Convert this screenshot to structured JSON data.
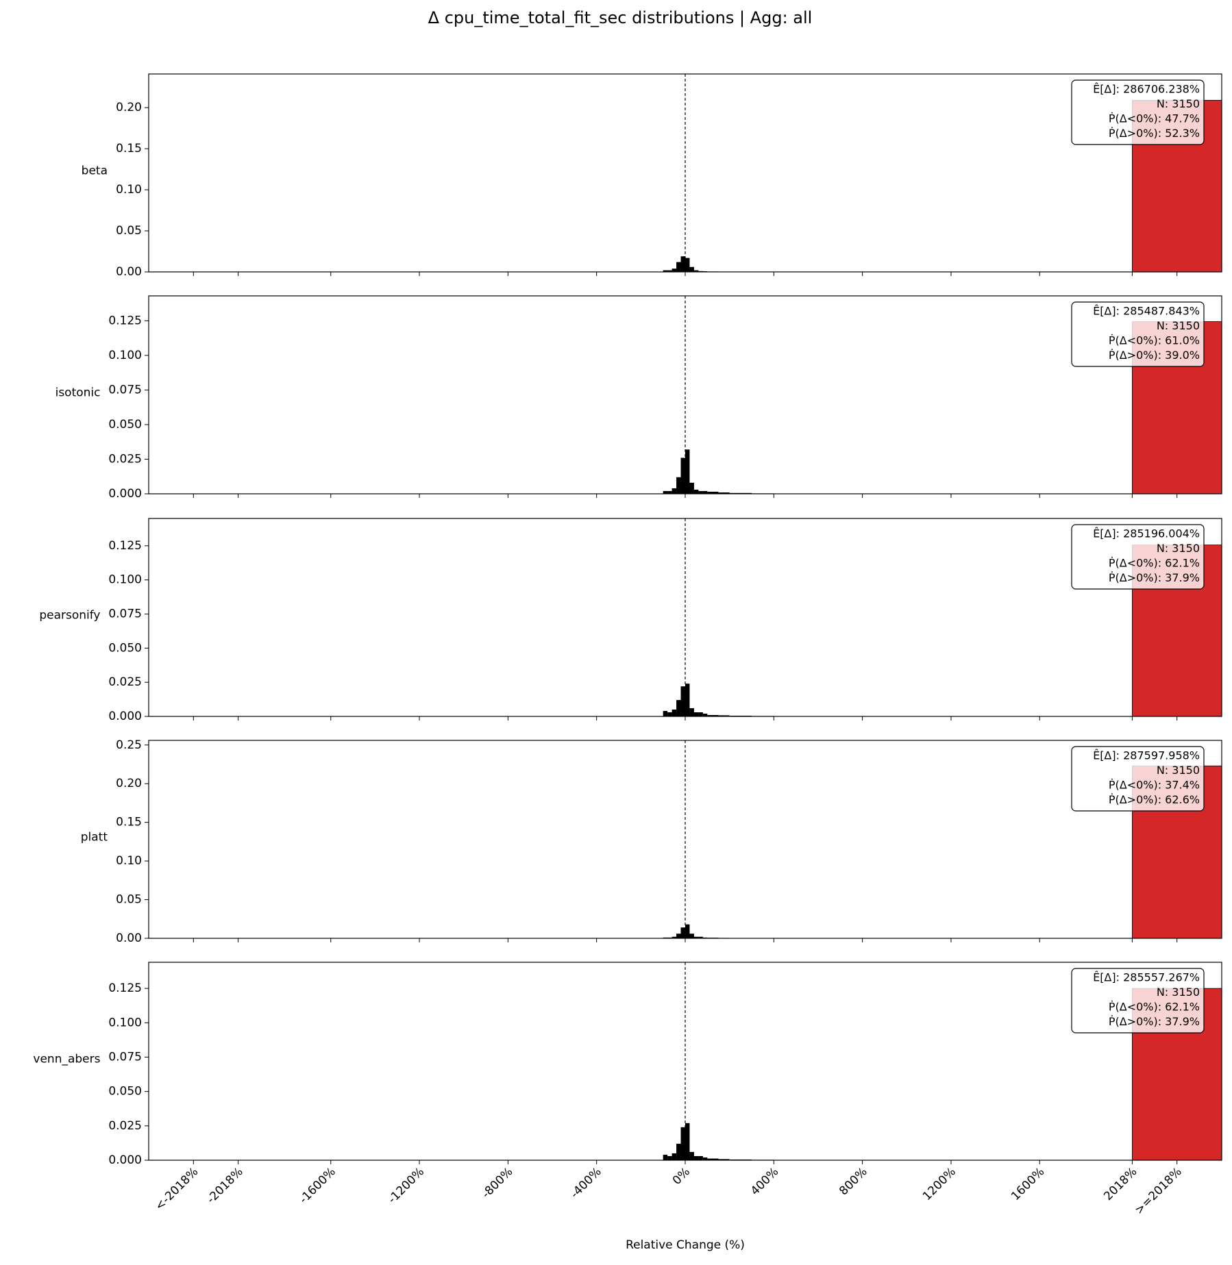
{
  "figure": {
    "title": "Δ cpu_time_total_fit_sec distributions | Agg: all",
    "xlabel": "Relative Change (%)",
    "xlim": [
      -2422,
      2422
    ],
    "xticks": [
      {
        "value": -2220,
        "label": "<-2018%"
      },
      {
        "value": -2018,
        "label": "-2018%"
      },
      {
        "value": -1600,
        "label": "-1600%"
      },
      {
        "value": -1200,
        "label": "-1200%"
      },
      {
        "value": -800,
        "label": "-800%"
      },
      {
        "value": -400,
        "label": "-400%"
      },
      {
        "value": 0,
        "label": "0%"
      },
      {
        "value": 400,
        "label": "400%"
      },
      {
        "value": 800,
        "label": "800%"
      },
      {
        "value": 1200,
        "label": "1200%"
      },
      {
        "value": 1600,
        "label": "1600%"
      },
      {
        "value": 2018,
        "label": "2018%"
      },
      {
        "value": 2220,
        "label": ">=2018%"
      }
    ]
  },
  "chart_data": [
    {
      "type": "histogram",
      "ylabel": "beta",
      "ylim": [
        0,
        0.241
      ],
      "yticks": [
        {
          "value": 0,
          "label": "0.00"
        },
        {
          "value": 0.05,
          "label": "0.05"
        },
        {
          "value": 0.1,
          "label": "0.10"
        },
        {
          "value": 0.15,
          "label": "0.15"
        },
        {
          "value": 0.2,
          "label": "0.20"
        }
      ],
      "bins": [
        -100,
        -80,
        -60,
        -40,
        -20,
        0,
        20,
        40,
        60,
        80,
        100,
        150,
        200,
        300,
        400
      ],
      "values": [
        0.002,
        0.002,
        0.004,
        0.012,
        0.019,
        0.017,
        0.006,
        0.002,
        0.001,
        0.0008,
        0.0005,
        0.0003,
        0.0002,
        0.0001
      ],
      "color": "#000000",
      "overflow_bin": [
        2018,
        2422
      ],
      "overflow_value": 0.209,
      "overflow_color": "#d62728",
      "reference_line": 0,
      "annotation": [
        "Ê[Δ]: 286706.238%",
        "N: 3150",
        "Ṗ(Δ<0%): 47.7%",
        "Ṗ(Δ>0%): 52.3%"
      ]
    },
    {
      "type": "histogram",
      "ylabel": "isotonic",
      "ylim": [
        0,
        0.143
      ],
      "yticks": [
        {
          "value": 0,
          "label": "0.000"
        },
        {
          "value": 0.025,
          "label": "0.025"
        },
        {
          "value": 0.05,
          "label": "0.050"
        },
        {
          "value": 0.075,
          "label": "0.075"
        },
        {
          "value": 0.1,
          "label": "0.100"
        },
        {
          "value": 0.125,
          "label": "0.125"
        }
      ],
      "bins": [
        -100,
        -80,
        -60,
        -40,
        -20,
        0,
        20,
        40,
        60,
        80,
        100,
        150,
        200,
        300,
        400
      ],
      "values": [
        0.002,
        0.002,
        0.004,
        0.012,
        0.026,
        0.032,
        0.008,
        0.003,
        0.002,
        0.002,
        0.0015,
        0.001,
        0.0006,
        0.0003
      ],
      "color": "#000000",
      "overflow_bin": [
        2018,
        2422
      ],
      "overflow_value": 0.1244,
      "overflow_color": "#d62728",
      "reference_line": 0,
      "annotation": [
        "Ê[Δ]: 285487.843%",
        "N: 3150",
        "Ṗ(Δ<0%): 61.0%",
        "Ṗ(Δ>0%): 39.0%"
      ]
    },
    {
      "type": "histogram",
      "ylabel": "pearsonify",
      "ylim": [
        0,
        0.145
      ],
      "yticks": [
        {
          "value": 0,
          "label": "0.000"
        },
        {
          "value": 0.025,
          "label": "0.025"
        },
        {
          "value": 0.05,
          "label": "0.050"
        },
        {
          "value": 0.075,
          "label": "0.075"
        },
        {
          "value": 0.1,
          "label": "0.100"
        },
        {
          "value": 0.125,
          "label": "0.125"
        }
      ],
      "bins": [
        -100,
        -80,
        -60,
        -40,
        -20,
        0,
        20,
        40,
        60,
        80,
        100,
        150,
        200,
        300,
        400
      ],
      "values": [
        0.004,
        0.003,
        0.005,
        0.012,
        0.022,
        0.024,
        0.006,
        0.003,
        0.003,
        0.002,
        0.001,
        0.0008,
        0.0005,
        0.0003
      ],
      "color": "#000000",
      "overflow_bin": [
        2018,
        2422
      ],
      "overflow_value": 0.1256,
      "overflow_color": "#d62728",
      "reference_line": 0,
      "annotation": [
        "Ê[Δ]: 285196.004%",
        "N: 3150",
        "Ṗ(Δ<0%): 62.1%",
        "Ṗ(Δ>0%): 37.9%"
      ]
    },
    {
      "type": "histogram",
      "ylabel": "platt",
      "ylim": [
        0,
        0.256
      ],
      "yticks": [
        {
          "value": 0,
          "label": "0.00"
        },
        {
          "value": 0.05,
          "label": "0.05"
        },
        {
          "value": 0.1,
          "label": "0.10"
        },
        {
          "value": 0.15,
          "label": "0.15"
        },
        {
          "value": 0.2,
          "label": "0.20"
        },
        {
          "value": 0.25,
          "label": "0.25"
        }
      ],
      "bins": [
        -100,
        -80,
        -60,
        -40,
        -20,
        0,
        20,
        40,
        60,
        80,
        100,
        150,
        200,
        300,
        400
      ],
      "values": [
        0.001,
        0.001,
        0.002,
        0.006,
        0.014,
        0.018,
        0.006,
        0.002,
        0.002,
        0.001,
        0.0008,
        0.0005,
        0.0003,
        0.0001
      ],
      "color": "#000000",
      "overflow_bin": [
        2018,
        2422
      ],
      "overflow_value": 0.223,
      "overflow_color": "#d62728",
      "reference_line": 0,
      "annotation": [
        "Ê[Δ]: 287597.958%",
        "N: 3150",
        "Ṗ(Δ<0%): 37.4%",
        "Ṗ(Δ>0%): 62.6%"
      ]
    },
    {
      "type": "histogram",
      "ylabel": "venn_abers",
      "ylim": [
        0,
        0.144
      ],
      "yticks": [
        {
          "value": 0,
          "label": "0.000"
        },
        {
          "value": 0.025,
          "label": "0.025"
        },
        {
          "value": 0.05,
          "label": "0.050"
        },
        {
          "value": 0.075,
          "label": "0.075"
        },
        {
          "value": 0.1,
          "label": "0.100"
        },
        {
          "value": 0.125,
          "label": "0.125"
        }
      ],
      "bins": [
        -100,
        -80,
        -60,
        -40,
        -20,
        0,
        20,
        40,
        60,
        80,
        100,
        150,
        200,
        300,
        400
      ],
      "values": [
        0.004,
        0.003,
        0.005,
        0.012,
        0.024,
        0.027,
        0.006,
        0.003,
        0.003,
        0.002,
        0.0012,
        0.0008,
        0.0005,
        0.0003
      ],
      "color": "#000000",
      "overflow_bin": [
        2018,
        2422
      ],
      "overflow_value": 0.125,
      "overflow_color": "#d62728",
      "reference_line": 0,
      "annotation": [
        "Ê[Δ]: 285557.267%",
        "N: 3150",
        "Ṗ(Δ<0%): 62.1%",
        "Ṗ(Δ>0%): 37.9%"
      ]
    }
  ]
}
